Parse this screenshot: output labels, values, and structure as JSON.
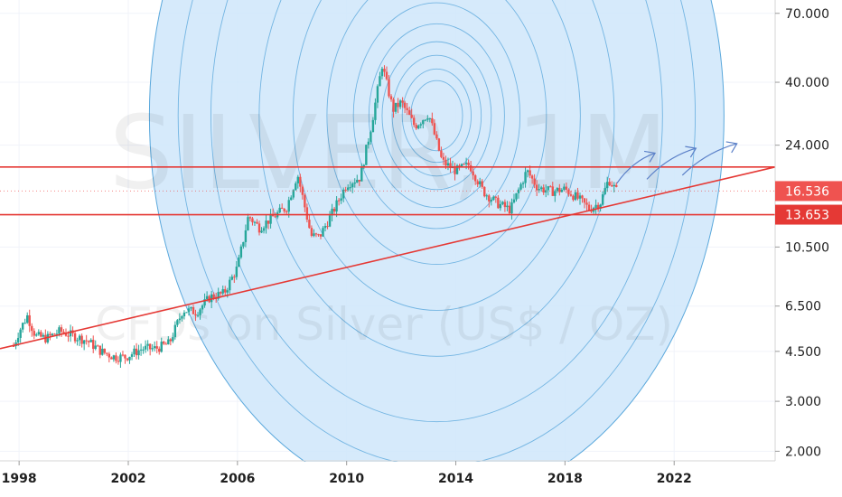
{
  "chart_data": {
    "type": "candlestick",
    "symbol": "SILVER, 1M",
    "subtitle": "CFDs on Silver (US$ / OZ)",
    "y_scale": "log",
    "ylim": [
      1.85,
      78
    ],
    "xlim": [
      1997.3,
      2025.7
    ],
    "x_ticks": [
      "1998",
      "2002",
      "2006",
      "2010",
      "2014",
      "2018",
      "2022"
    ],
    "y_ticks": [
      "70.000",
      "40.000",
      "24.000",
      "10.500",
      "6.500",
      "4.500",
      "3.000",
      "2.000"
    ],
    "price_badges": [
      {
        "label": "16.536",
        "value": 16.536,
        "color": "#ef5350"
      },
      {
        "label": "13.653",
        "value": 13.653,
        "color": "#e53935"
      }
    ],
    "colors": {
      "up": "#26a69a",
      "down": "#ef5350",
      "lines": "#e53935",
      "fib_fill": "#cfe6fa",
      "fib_stroke": "#5aa8dc",
      "arrows": "#5b80c8"
    },
    "grid": true,
    "price_path": [
      [
        1997.8,
        4.7
      ],
      [
        1998.0,
        5.3
      ],
      [
        1998.3,
        6.0
      ],
      [
        1998.6,
        5.1
      ],
      [
        1999.0,
        5.0
      ],
      [
        1999.5,
        5.3
      ],
      [
        2000.0,
        5.1
      ],
      [
        2000.5,
        4.9
      ],
      [
        2001.0,
        4.5
      ],
      [
        2001.5,
        4.3
      ],
      [
        2001.9,
        4.3
      ],
      [
        2002.5,
        4.6
      ],
      [
        2003.0,
        4.6
      ],
      [
        2003.5,
        4.8
      ],
      [
        2004.0,
        6.3
      ],
      [
        2004.5,
        6.2
      ],
      [
        2005.0,
        7.0
      ],
      [
        2005.5,
        7.2
      ],
      [
        2006.0,
        8.9
      ],
      [
        2006.4,
        13.5
      ],
      [
        2006.8,
        12.3
      ],
      [
        2007.3,
        13.4
      ],
      [
        2007.8,
        14.5
      ],
      [
        2008.2,
        19.0
      ],
      [
        2008.7,
        11.5
      ],
      [
        2009.0,
        11.4
      ],
      [
        2009.5,
        14.0
      ],
      [
        2010.0,
        17.5
      ],
      [
        2010.5,
        18.5
      ],
      [
        2010.9,
        28.0
      ],
      [
        2011.3,
        46.0
      ],
      [
        2011.7,
        32.0
      ],
      [
        2012.0,
        34.0
      ],
      [
        2012.5,
        28.0
      ],
      [
        2013.0,
        31.0
      ],
      [
        2013.5,
        21.0
      ],
      [
        2014.0,
        19.5
      ],
      [
        2014.5,
        20.5
      ],
      [
        2015.0,
        16.5
      ],
      [
        2015.5,
        15.0
      ],
      [
        2016.0,
        14.2
      ],
      [
        2016.6,
        19.5
      ],
      [
        2017.0,
        17.0
      ],
      [
        2017.5,
        16.5
      ],
      [
        2018.0,
        16.8
      ],
      [
        2018.5,
        15.5
      ],
      [
        2018.9,
        14.3
      ],
      [
        2019.3,
        15.1
      ],
      [
        2019.6,
        18.2
      ],
      [
        2019.9,
        16.5
      ]
    ],
    "support_trendline": [
      [
        1997.3,
        4.6
      ],
      [
        2025.7,
        20.1
      ]
    ],
    "horizontal_lines": [
      20.1,
      13.653
    ],
    "fib_circles_center": [
      2013.3,
      30.5
    ]
  }
}
